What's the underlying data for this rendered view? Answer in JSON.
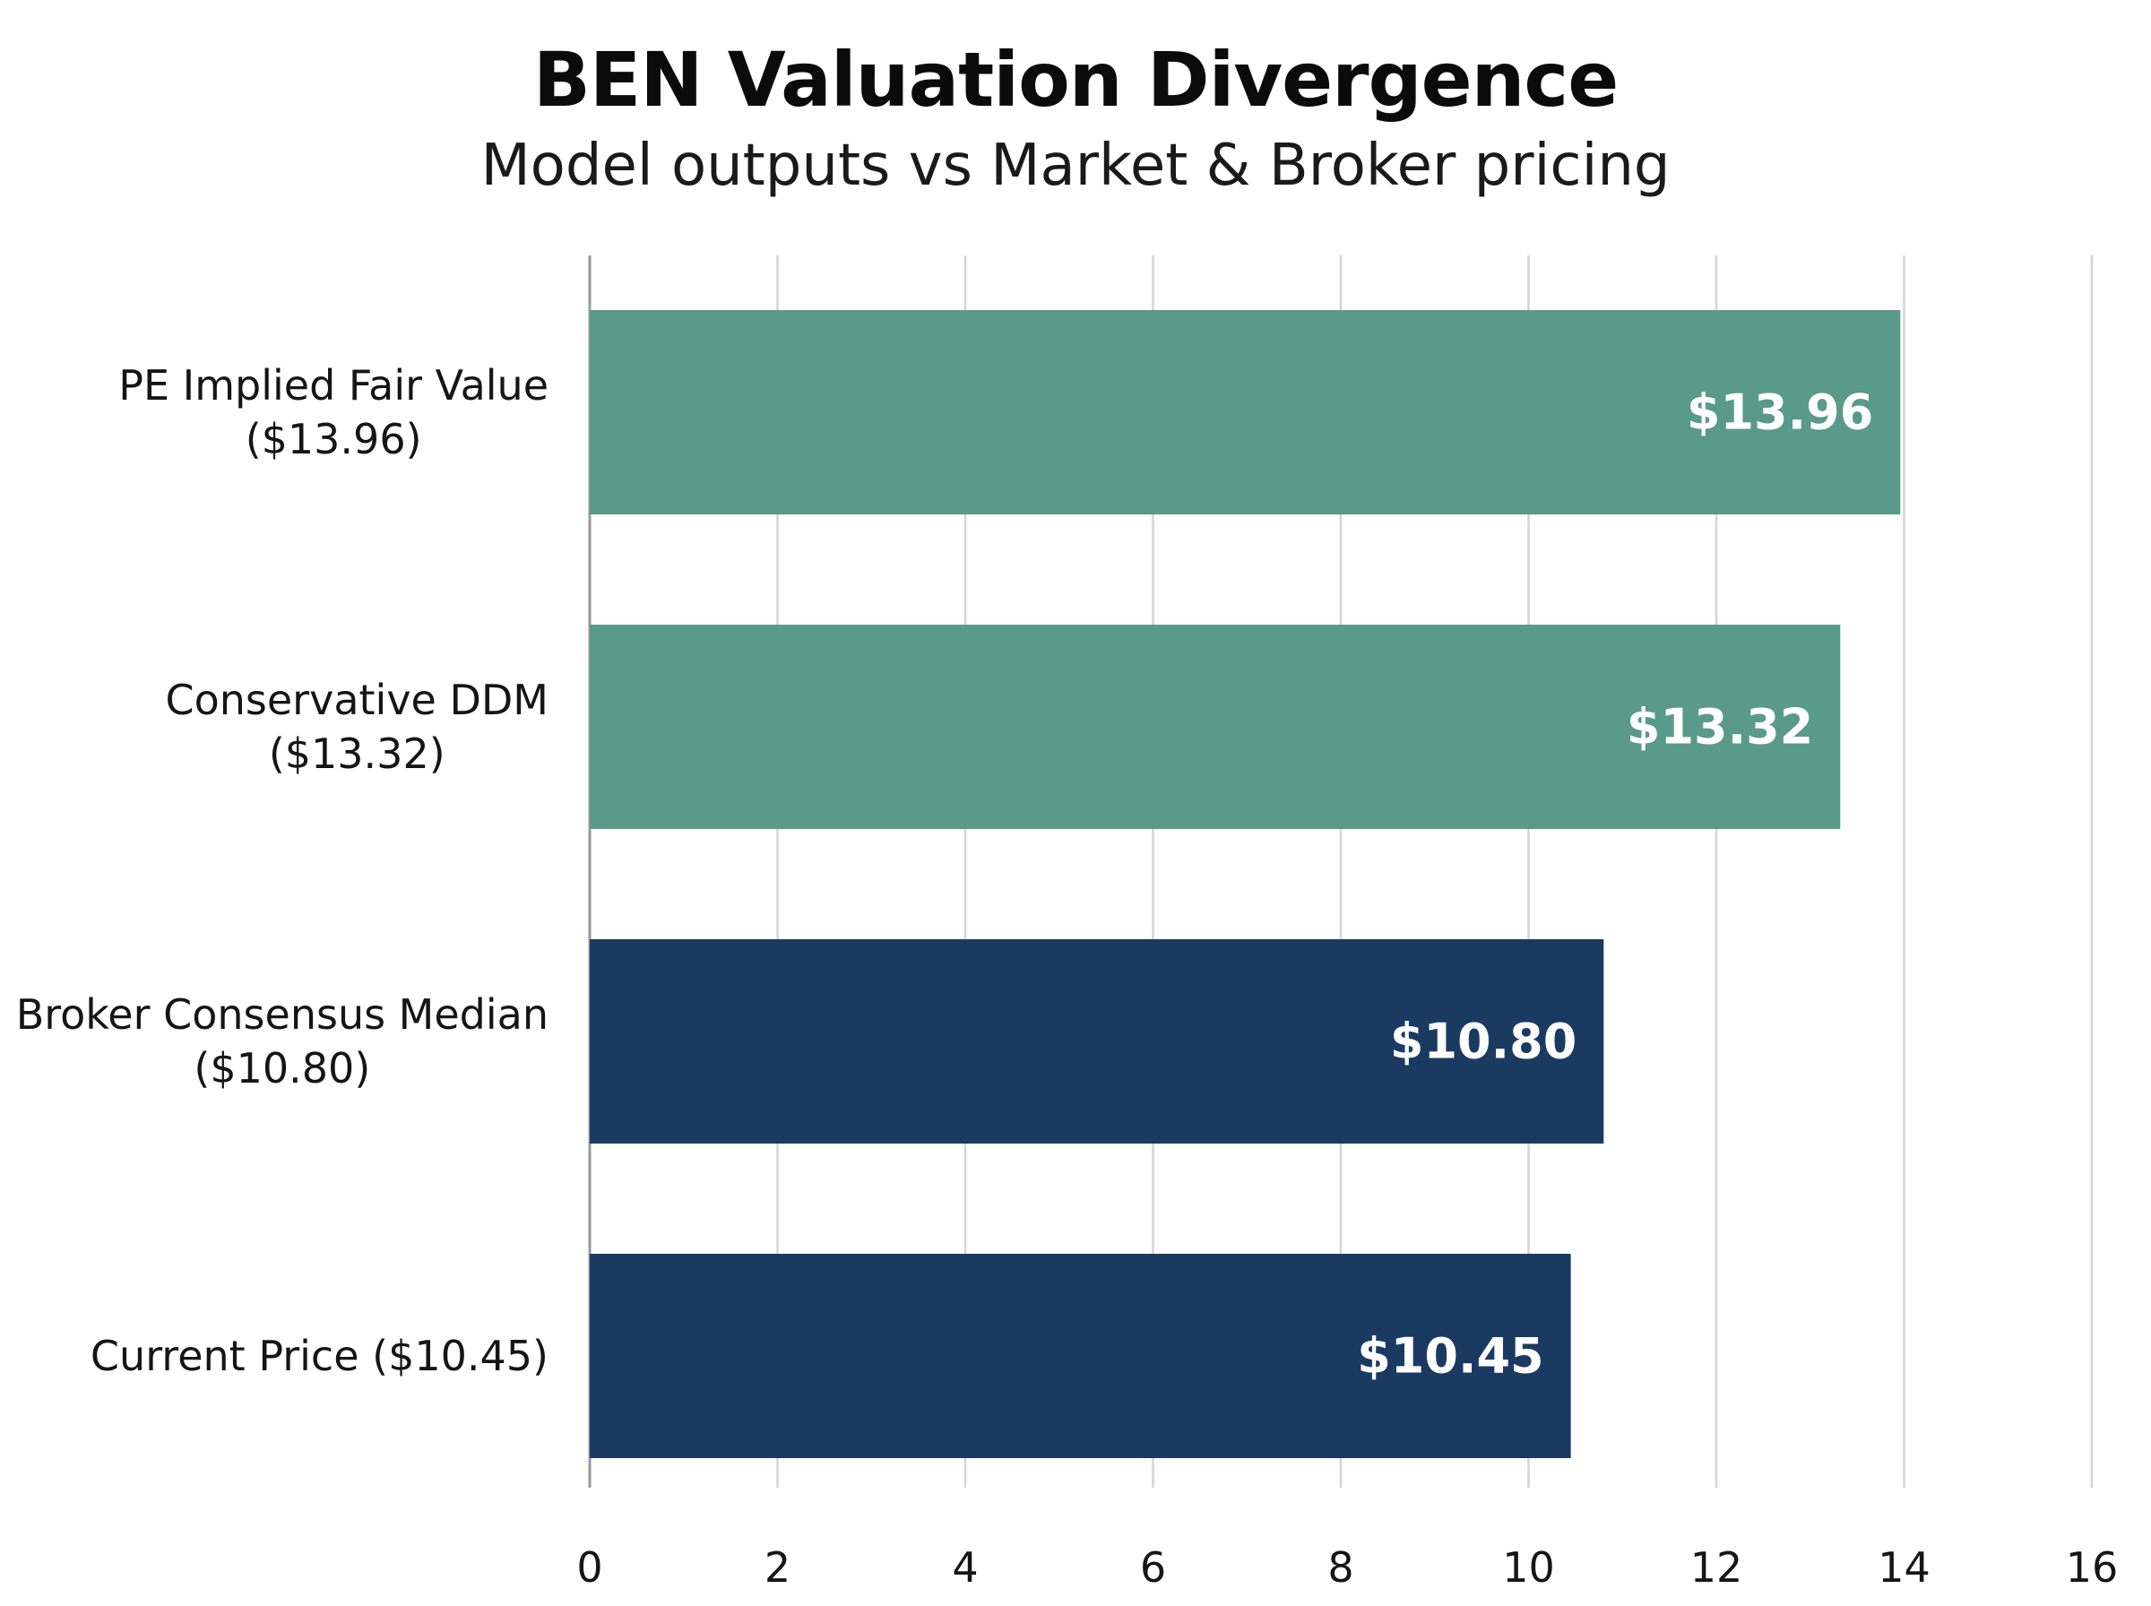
{
  "chart_data": {
    "type": "bar",
    "orientation": "horizontal",
    "title": "BEN Valuation Divergence",
    "subtitle": "Model outputs vs Market & Broker pricing",
    "categories": [
      "PE Implied Fair Value\n($13.96)",
      "Conservative DDM\n($13.32)",
      "Broker Consensus Median\n($10.80)",
      "Current Price ($10.45)"
    ],
    "values": [
      13.96,
      13.32,
      10.8,
      10.45
    ],
    "value_labels": [
      "$13.96",
      "$13.32",
      "$10.80",
      "$10.45"
    ],
    "bar_colors": [
      "#5a9a88",
      "#5a9a88",
      "#1b3a62",
      "#1b3a62"
    ],
    "xlim": [
      0,
      16
    ],
    "xticks": [
      0,
      2,
      4,
      6,
      8,
      10,
      12,
      14,
      16
    ],
    "xtick_labels": [
      "0",
      "2",
      "4",
      "6",
      "8",
      "10",
      "12",
      "14",
      "16"
    ],
    "grid": true,
    "legend": "none",
    "xlabel": "",
    "ylabel": ""
  }
}
